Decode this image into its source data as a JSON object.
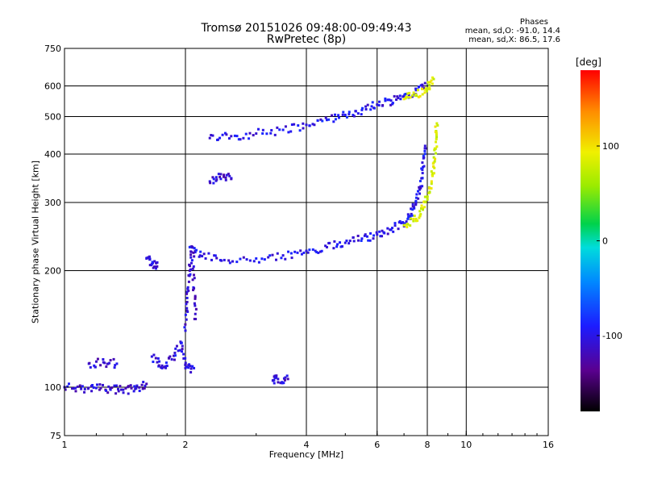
{
  "title_line1": "Tromsø 20151026 09:48:00-09:49:43",
  "title_line2": "RwPretec (8p)",
  "stats": {
    "heading": "Phases",
    "line1": "mean, sd,O: -91.0, 14.4",
    "line2": "mean, sd,X:  86.5, 17.6"
  },
  "colorbar": {
    "unit_label": "[deg]",
    "ticks": [
      "100",
      "0",
      "-100"
    ],
    "tick_values": [
      100,
      0,
      -100
    ],
    "range": [
      -180,
      180
    ]
  },
  "chart_data": {
    "type": "scatter",
    "xlabel": "Frequency [MHz]",
    "ylabel": "Stationary phase Virtual Height [km]",
    "x_scale": "log",
    "y_scale": "log",
    "xlim": [
      1,
      16
    ],
    "ylim": [
      75,
      750
    ],
    "x_ticks": [
      "1",
      "2",
      "4",
      "6",
      "8",
      "10",
      "16"
    ],
    "x_tick_values": [
      1,
      2,
      4,
      6,
      8,
      10,
      16
    ],
    "y_ticks": [
      "75",
      "100",
      "200",
      "300",
      "400",
      "500",
      "600",
      "750"
    ],
    "y_tick_values": [
      75,
      100,
      200,
      300,
      400,
      500,
      600,
      750
    ],
    "x_gridlines": [
      2,
      4,
      6,
      8,
      10
    ],
    "y_gridlines": [
      100,
      200,
      300,
      400,
      500,
      600
    ],
    "traces": [
      {
        "name": "O-mode E/F1 trace",
        "phase_deg": -100,
        "points": [
          [
            2.05,
            230
          ],
          [
            2.2,
            218
          ],
          [
            2.5,
            213
          ],
          [
            3,
            215
          ],
          [
            3.5,
            219
          ],
          [
            4,
            225
          ],
          [
            4.5,
            230
          ],
          [
            5,
            236
          ],
          [
            5.5,
            242
          ],
          [
            6,
            248
          ],
          [
            6.5,
            255
          ],
          [
            7,
            265
          ],
          [
            7.3,
            280
          ],
          [
            7.5,
            300
          ],
          [
            7.7,
            330
          ],
          [
            7.8,
            370
          ],
          [
            7.9,
            420
          ]
        ]
      },
      {
        "name": "O-mode F2 trace",
        "phase_deg": -100,
        "points": [
          [
            2.3,
            440
          ],
          [
            2.6,
            445
          ],
          [
            3,
            452
          ],
          [
            3.5,
            462
          ],
          [
            4,
            476
          ],
          [
            4.5,
            490
          ],
          [
            5,
            505
          ],
          [
            5.5,
            520
          ],
          [
            6,
            537
          ],
          [
            6.5,
            550
          ],
          [
            7,
            565
          ],
          [
            7.5,
            585
          ],
          [
            7.9,
            610
          ]
        ]
      },
      {
        "name": "X-mode F1 trace",
        "phase_deg": 85,
        "points": [
          [
            7.0,
            262
          ],
          [
            7.5,
            272
          ],
          [
            7.8,
            290
          ],
          [
            8.0,
            310
          ],
          [
            8.2,
            340
          ],
          [
            8.3,
            380
          ],
          [
            8.4,
            430
          ],
          [
            8.45,
            480
          ]
        ]
      },
      {
        "name": "X-mode F2 trace",
        "phase_deg": 85,
        "points": [
          [
            7.0,
            555
          ],
          [
            7.5,
            570
          ],
          [
            8.0,
            590
          ],
          [
            8.3,
            625
          ]
        ]
      },
      {
        "name": "Low trace 100 km",
        "phase_deg": -110,
        "points": [
          [
            1.0,
            100
          ],
          [
            1.1,
            99
          ],
          [
            1.2,
            99.5
          ],
          [
            1.3,
            99
          ],
          [
            1.4,
            98.5
          ],
          [
            1.5,
            99
          ],
          [
            1.6,
            102
          ]
        ]
      },
      {
        "name": "Low trace 115 km",
        "phase_deg": -110,
        "points": [
          [
            1.15,
            115
          ],
          [
            1.25,
            116
          ],
          [
            1.35,
            115
          ]
        ]
      },
      {
        "name": "Spread segment 1.7-2.0 MHz",
        "phase_deg": -105,
        "points": [
          [
            1.65,
            120
          ],
          [
            1.75,
            112
          ],
          [
            1.85,
            118
          ],
          [
            1.95,
            130
          ],
          [
            2.0,
            112
          ],
          [
            2.1,
            112
          ]
        ]
      },
      {
        "name": "Vertical spread near 2 MHz",
        "phase_deg": -110,
        "points": [
          [
            2.0,
            140
          ],
          [
            2.02,
            170
          ],
          [
            2.05,
            200
          ],
          [
            2.08,
            230
          ],
          [
            2.1,
            180
          ],
          [
            2.12,
            150
          ]
        ]
      },
      {
        "name": "Patch 1.6-1.7 MHz",
        "phase_deg": -105,
        "points": [
          [
            1.6,
            215
          ],
          [
            1.65,
            208
          ],
          [
            1.7,
            205
          ]
        ]
      },
      {
        "name": "Patch near 2.4 MHz",
        "phase_deg": -110,
        "points": [
          [
            2.3,
            340
          ],
          [
            2.45,
            355
          ],
          [
            2.6,
            345
          ]
        ]
      },
      {
        "name": "Patch near 3.4 MHz",
        "phase_deg": -110,
        "points": [
          [
            3.3,
            104
          ],
          [
            3.4,
            105
          ],
          [
            3.6,
            105
          ]
        ]
      }
    ]
  }
}
